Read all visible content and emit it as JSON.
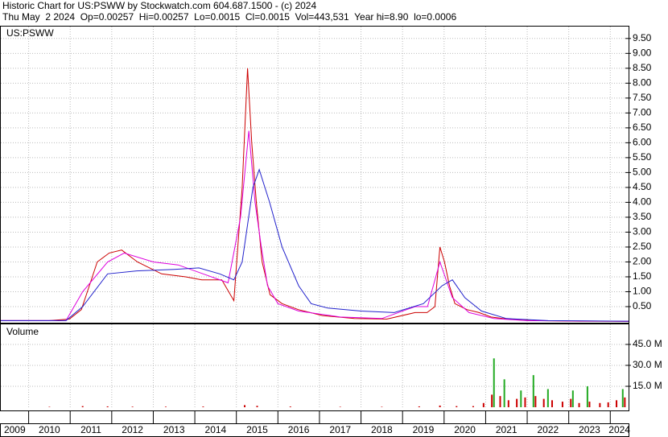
{
  "header": {
    "line1": "Historic Chart for US:PSWW by Stockwatch.com 604.687.1500 - (c) 2024",
    "line2": "Thu May  2 2024  Op=0.00257  Hi=0.00257  Lo=0.0015  Cl=0.0015  Vol=443,531  Year hi=8.90  lo=0.0006"
  },
  "chart_data": [
    {
      "type": "line",
      "title": "US:PSWW",
      "xlim": [
        2009.33,
        2024.44
      ],
      "xticks": [
        2009,
        2010,
        2011,
        2012,
        2013,
        2014,
        2015,
        2016,
        2017,
        2018,
        2019,
        2020,
        2021,
        2022,
        2023,
        2024
      ],
      "ylim": [
        0,
        9.9
      ],
      "yticks": [
        {
          "value": 0.5,
          "label": "0.50"
        },
        {
          "value": 1,
          "label": "1.00"
        },
        {
          "value": 1.5,
          "label": "1.50"
        },
        {
          "value": 2,
          "label": "2.00"
        },
        {
          "value": 2.5,
          "label": "2.50"
        },
        {
          "value": 3,
          "label": "3.00"
        },
        {
          "value": 3.5,
          "label": "3.50"
        },
        {
          "value": 4,
          "label": "4.00"
        },
        {
          "value": 4.5,
          "label": "4.50"
        },
        {
          "value": 5,
          "label": "5.00"
        },
        {
          "value": 5.5,
          "label": "5.50"
        },
        {
          "value": 6,
          "label": "6.00"
        },
        {
          "value": 6.5,
          "label": "6.50"
        },
        {
          "value": 7,
          "label": "7.00"
        },
        {
          "value": 7.5,
          "label": "7.50"
        },
        {
          "value": 8,
          "label": "8.00"
        },
        {
          "value": 8.5,
          "label": "8.50"
        },
        {
          "value": 9,
          "label": "9.00"
        },
        {
          "value": 9.5,
          "label": "9.50"
        }
      ],
      "grid": true,
      "series": [
        {
          "color": "#cc0000",
          "x": [
            2009.33,
            2010.49,
            2010.98,
            2011.27,
            2011.46,
            2011.65,
            2011.94,
            2012.24,
            2012.62,
            2013.2,
            2013.78,
            2014.17,
            2014.65,
            2014.94,
            2015.14,
            2015.27,
            2015.37,
            2015.48,
            2015.62,
            2015.81,
            2016.1,
            2016.49,
            2017.07,
            2017.84,
            2018.62,
            2019.3,
            2019.59,
            2019.78,
            2019.9,
            2020.01,
            2020.13,
            2020.26,
            2020.55,
            2020.84,
            2021.13,
            2021.52,
            2022.1,
            2023.26,
            2024.44
          ],
          "values": [
            0.03,
            0.03,
            0.08,
            0.4,
            1.2,
            2.0,
            2.3,
            2.4,
            2.0,
            1.6,
            1.5,
            1.4,
            1.4,
            0.7,
            4.5,
            8.5,
            6.0,
            4.0,
            2.0,
            0.9,
            0.6,
            0.4,
            0.2,
            0.1,
            0.08,
            0.3,
            0.3,
            0.5,
            2.5,
            2.0,
            1.2,
            0.6,
            0.4,
            0.3,
            0.15,
            0.08,
            0.03,
            0.01,
            0.0015
          ]
        },
        {
          "color": "#dd00dd",
          "x": [
            2009.33,
            2010.9,
            2011.3,
            2011.9,
            2012.3,
            2013.0,
            2013.6,
            2014.2,
            2014.8,
            2015.1,
            2015.3,
            2015.45,
            2015.6,
            2015.75,
            2016.0,
            2016.5,
            2017.5,
            2018.5,
            2019.3,
            2019.6,
            2019.9,
            2020.2,
            2020.6,
            2021.2,
            2022.0,
            2024.44
          ],
          "values": [
            0.03,
            0.03,
            1.0,
            2.0,
            2.3,
            2.0,
            1.9,
            1.6,
            1.3,
            3.5,
            6.4,
            4.0,
            2.5,
            1.2,
            0.6,
            0.35,
            0.15,
            0.1,
            0.5,
            0.5,
            2.0,
            0.8,
            0.3,
            0.1,
            0.03,
            0.005
          ]
        },
        {
          "color": "#2222cc",
          "x": [
            2009.33,
            2010.9,
            2011.3,
            2011.9,
            2012.6,
            2013.5,
            2014.1,
            2014.6,
            2014.94,
            2015.14,
            2015.4,
            2015.55,
            2015.8,
            2016.1,
            2016.5,
            2016.8,
            2017.2,
            2018.0,
            2018.8,
            2019.5,
            2019.95,
            2020.2,
            2020.5,
            2020.9,
            2021.5,
            2022.5,
            2024.44
          ],
          "values": [
            0.03,
            0.03,
            0.5,
            1.6,
            1.7,
            1.75,
            1.8,
            1.6,
            1.4,
            2.0,
            4.5,
            5.1,
            4.0,
            2.5,
            1.2,
            0.6,
            0.45,
            0.35,
            0.3,
            0.6,
            1.2,
            1.4,
            0.8,
            0.35,
            0.1,
            0.03,
            0.01
          ]
        }
      ]
    },
    {
      "type": "bar",
      "title": "Volume",
      "xlim": [
        2009.33,
        2024.44
      ],
      "ylim": [
        0,
        59.4
      ],
      "yticks": [
        {
          "value": 15,
          "label": "15.0 M"
        },
        {
          "value": 30,
          "label": "30.0 M"
        },
        {
          "value": 45,
          "label": "45.0 M"
        }
      ],
      "grid": true,
      "series": [
        {
          "color": "#cc0000",
          "x": [
            2010.5,
            2011.3,
            2011.9,
            2012.5,
            2013.3,
            2014.2,
            2015.2,
            2015.5,
            2016.3,
            2017.5,
            2018.5,
            2019.4,
            2019.9,
            2020.3,
            2020.7,
            2020.95,
            2021.15,
            2021.35,
            2021.55,
            2021.75,
            2021.95,
            2022.2,
            2022.4,
            2022.6,
            2022.85,
            2023.05,
            2023.25,
            2023.5,
            2023.75,
            2023.95,
            2024.15,
            2024.35
          ],
          "values": [
            0.3,
            0.8,
            0.6,
            0.4,
            0.4,
            0.5,
            1.5,
            1.0,
            0.5,
            0.3,
            0.3,
            0.6,
            1.2,
            0.8,
            0.8,
            3.0,
            9.0,
            8.0,
            5.0,
            6.0,
            7.0,
            8.0,
            6.0,
            5.0,
            4.0,
            6.0,
            3.0,
            4.0,
            3.0,
            3.5,
            5.0,
            7.0
          ]
        },
        {
          "color": "#22aa22",
          "x": [
            2021.2,
            2021.45,
            2021.85,
            2022.15,
            2022.5,
            2023.1,
            2023.45,
            2024.3
          ],
          "values": [
            35,
            20,
            12,
            23,
            13,
            12,
            15,
            13
          ]
        }
      ]
    }
  ]
}
